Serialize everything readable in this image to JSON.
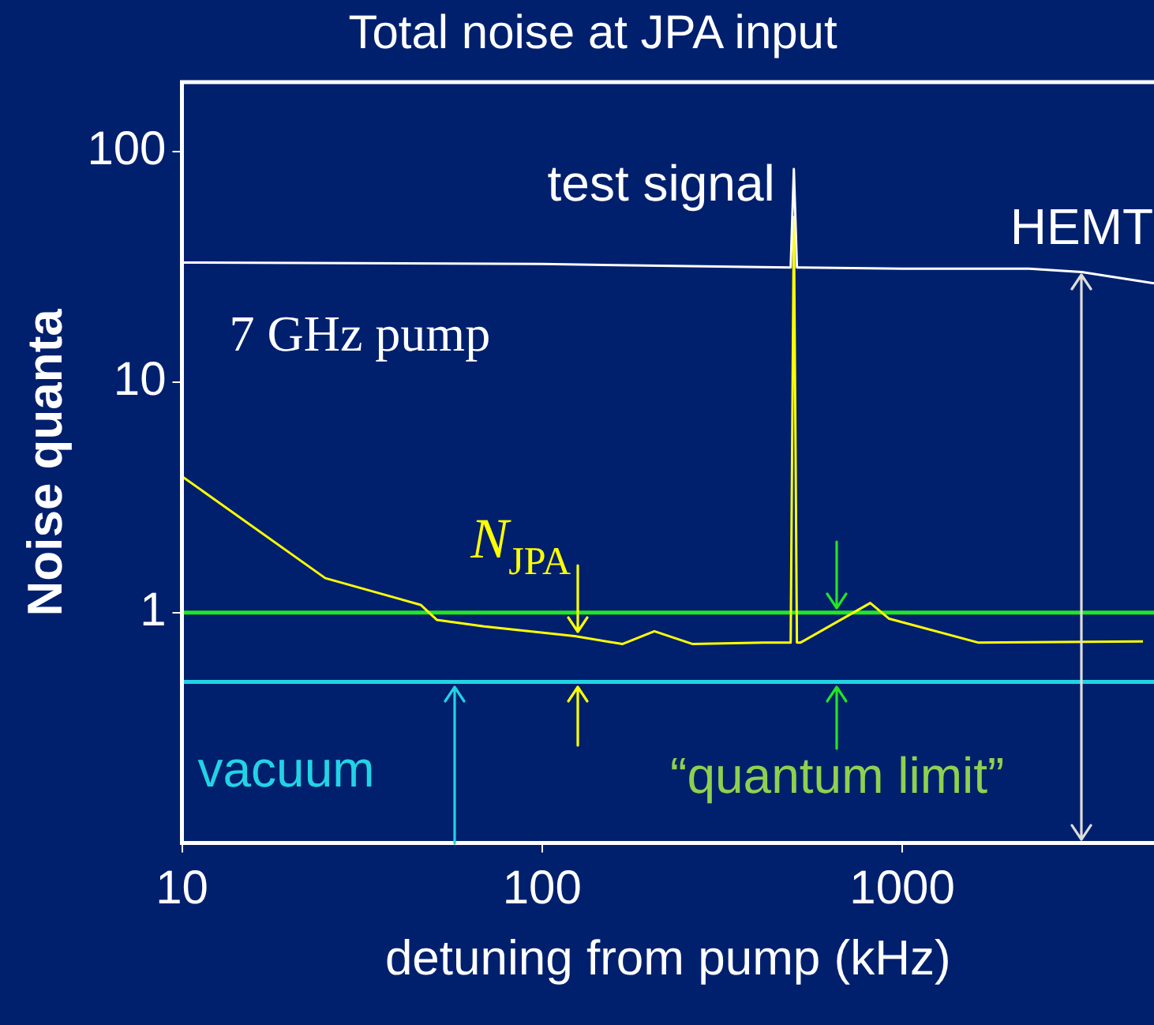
{
  "chart_data": {
    "type": "line",
    "title": "Total noise at JPA input",
    "xlabel": "detuning from pump (kHz)",
    "ylabel": "Noise quanta",
    "x": [
      10,
      25,
      46,
      51,
      69,
      123,
      167,
      205,
      262,
      412,
      490,
      500,
      510,
      521,
      815,
      920,
      1630,
      4660
    ],
    "series": [
      {
        "color": "#ffffff",
        "x": [
          10,
          100,
          490,
          500,
          510,
          1000,
          2250,
          3150,
          5000
        ],
        "values": [
          33,
          32.5,
          31.4,
          84,
          31.4,
          31,
          31,
          30,
          26.8
        ]
      },
      {
        "color": "#ffff00",
        "values": [
          3.9,
          1.41,
          1.08,
          0.93,
          0.87,
          0.79,
          0.73,
          0.83,
          0.73,
          0.74,
          0.74,
          52,
          0.74,
          0.74,
          1.1,
          0.94,
          0.74,
          0.75
        ]
      }
    ],
    "xlim": [
      10,
      5000
    ],
    "ylim": [
      0.1,
      200
    ],
    "xticks": [
      10,
      100,
      1000
    ],
    "yticks": [
      1,
      10,
      100
    ],
    "log": "xy",
    "grid": false,
    "legend": false,
    "marker": "none",
    "line_style": "solid",
    "ref_lines": [
      {
        "axis": "y",
        "value": 1,
        "color": "#22e622"
      },
      {
        "axis": "y",
        "value": 0.5,
        "color": "#22d3e6"
      }
    ],
    "annotations": [
      {
        "text": "test signal",
        "x": 500,
        "y": 84
      },
      {
        "text": "HEMT",
        "x": 3150,
        "y": 30
      },
      "7 GHz pump",
      {
        "text": "N$_{JPA}$",
        "x": 125,
        "y": 0.79
      },
      {
        "text": "vacuum",
        "x": 57,
        "y": 0.5
      },
      {
        "text": "“quantum limit”",
        "x": 660,
        "y": 1
      }
    ]
  }
}
